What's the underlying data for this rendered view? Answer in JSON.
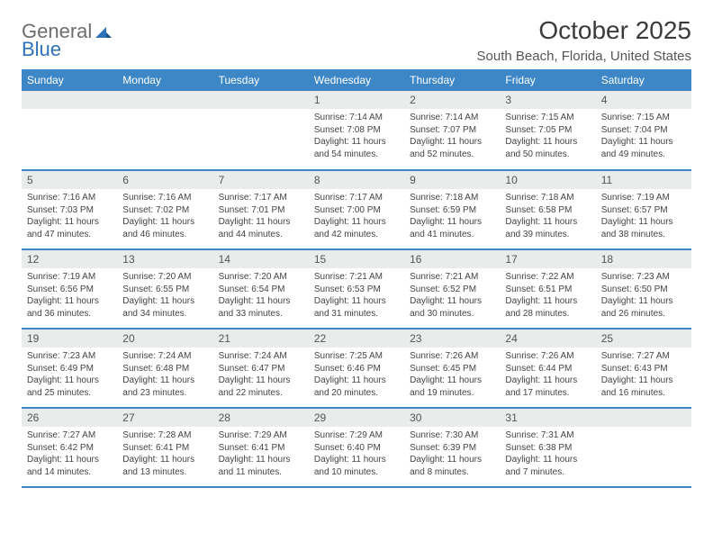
{
  "brand": {
    "part1": "General",
    "part2": "Blue"
  },
  "title": "October 2025",
  "location": "South Beach, Florida, United States",
  "colors": {
    "header_bg": "#3d87c7",
    "header_text": "#ffffff",
    "daynum_bg": "#e9eceb",
    "rule": "#3d87c7",
    "logo_gray": "#6d6d6d",
    "logo_blue": "#2f72b8"
  },
  "weekdays": [
    "Sunday",
    "Monday",
    "Tuesday",
    "Wednesday",
    "Thursday",
    "Friday",
    "Saturday"
  ],
  "weeks": [
    [
      null,
      null,
      null,
      {
        "n": "1",
        "sr": "Sunrise: 7:14 AM",
        "ss": "Sunset: 7:08 PM",
        "d1": "Daylight: 11 hours",
        "d2": "and 54 minutes."
      },
      {
        "n": "2",
        "sr": "Sunrise: 7:14 AM",
        "ss": "Sunset: 7:07 PM",
        "d1": "Daylight: 11 hours",
        "d2": "and 52 minutes."
      },
      {
        "n": "3",
        "sr": "Sunrise: 7:15 AM",
        "ss": "Sunset: 7:05 PM",
        "d1": "Daylight: 11 hours",
        "d2": "and 50 minutes."
      },
      {
        "n": "4",
        "sr": "Sunrise: 7:15 AM",
        "ss": "Sunset: 7:04 PM",
        "d1": "Daylight: 11 hours",
        "d2": "and 49 minutes."
      }
    ],
    [
      {
        "n": "5",
        "sr": "Sunrise: 7:16 AM",
        "ss": "Sunset: 7:03 PM",
        "d1": "Daylight: 11 hours",
        "d2": "and 47 minutes."
      },
      {
        "n": "6",
        "sr": "Sunrise: 7:16 AM",
        "ss": "Sunset: 7:02 PM",
        "d1": "Daylight: 11 hours",
        "d2": "and 46 minutes."
      },
      {
        "n": "7",
        "sr": "Sunrise: 7:17 AM",
        "ss": "Sunset: 7:01 PM",
        "d1": "Daylight: 11 hours",
        "d2": "and 44 minutes."
      },
      {
        "n": "8",
        "sr": "Sunrise: 7:17 AM",
        "ss": "Sunset: 7:00 PM",
        "d1": "Daylight: 11 hours",
        "d2": "and 42 minutes."
      },
      {
        "n": "9",
        "sr": "Sunrise: 7:18 AM",
        "ss": "Sunset: 6:59 PM",
        "d1": "Daylight: 11 hours",
        "d2": "and 41 minutes."
      },
      {
        "n": "10",
        "sr": "Sunrise: 7:18 AM",
        "ss": "Sunset: 6:58 PM",
        "d1": "Daylight: 11 hours",
        "d2": "and 39 minutes."
      },
      {
        "n": "11",
        "sr": "Sunrise: 7:19 AM",
        "ss": "Sunset: 6:57 PM",
        "d1": "Daylight: 11 hours",
        "d2": "and 38 minutes."
      }
    ],
    [
      {
        "n": "12",
        "sr": "Sunrise: 7:19 AM",
        "ss": "Sunset: 6:56 PM",
        "d1": "Daylight: 11 hours",
        "d2": "and 36 minutes."
      },
      {
        "n": "13",
        "sr": "Sunrise: 7:20 AM",
        "ss": "Sunset: 6:55 PM",
        "d1": "Daylight: 11 hours",
        "d2": "and 34 minutes."
      },
      {
        "n": "14",
        "sr": "Sunrise: 7:20 AM",
        "ss": "Sunset: 6:54 PM",
        "d1": "Daylight: 11 hours",
        "d2": "and 33 minutes."
      },
      {
        "n": "15",
        "sr": "Sunrise: 7:21 AM",
        "ss": "Sunset: 6:53 PM",
        "d1": "Daylight: 11 hours",
        "d2": "and 31 minutes."
      },
      {
        "n": "16",
        "sr": "Sunrise: 7:21 AM",
        "ss": "Sunset: 6:52 PM",
        "d1": "Daylight: 11 hours",
        "d2": "and 30 minutes."
      },
      {
        "n": "17",
        "sr": "Sunrise: 7:22 AM",
        "ss": "Sunset: 6:51 PM",
        "d1": "Daylight: 11 hours",
        "d2": "and 28 minutes."
      },
      {
        "n": "18",
        "sr": "Sunrise: 7:23 AM",
        "ss": "Sunset: 6:50 PM",
        "d1": "Daylight: 11 hours",
        "d2": "and 26 minutes."
      }
    ],
    [
      {
        "n": "19",
        "sr": "Sunrise: 7:23 AM",
        "ss": "Sunset: 6:49 PM",
        "d1": "Daylight: 11 hours",
        "d2": "and 25 minutes."
      },
      {
        "n": "20",
        "sr": "Sunrise: 7:24 AM",
        "ss": "Sunset: 6:48 PM",
        "d1": "Daylight: 11 hours",
        "d2": "and 23 minutes."
      },
      {
        "n": "21",
        "sr": "Sunrise: 7:24 AM",
        "ss": "Sunset: 6:47 PM",
        "d1": "Daylight: 11 hours",
        "d2": "and 22 minutes."
      },
      {
        "n": "22",
        "sr": "Sunrise: 7:25 AM",
        "ss": "Sunset: 6:46 PM",
        "d1": "Daylight: 11 hours",
        "d2": "and 20 minutes."
      },
      {
        "n": "23",
        "sr": "Sunrise: 7:26 AM",
        "ss": "Sunset: 6:45 PM",
        "d1": "Daylight: 11 hours",
        "d2": "and 19 minutes."
      },
      {
        "n": "24",
        "sr": "Sunrise: 7:26 AM",
        "ss": "Sunset: 6:44 PM",
        "d1": "Daylight: 11 hours",
        "d2": "and 17 minutes."
      },
      {
        "n": "25",
        "sr": "Sunrise: 7:27 AM",
        "ss": "Sunset: 6:43 PM",
        "d1": "Daylight: 11 hours",
        "d2": "and 16 minutes."
      }
    ],
    [
      {
        "n": "26",
        "sr": "Sunrise: 7:27 AM",
        "ss": "Sunset: 6:42 PM",
        "d1": "Daylight: 11 hours",
        "d2": "and 14 minutes."
      },
      {
        "n": "27",
        "sr": "Sunrise: 7:28 AM",
        "ss": "Sunset: 6:41 PM",
        "d1": "Daylight: 11 hours",
        "d2": "and 13 minutes."
      },
      {
        "n": "28",
        "sr": "Sunrise: 7:29 AM",
        "ss": "Sunset: 6:41 PM",
        "d1": "Daylight: 11 hours",
        "d2": "and 11 minutes."
      },
      {
        "n": "29",
        "sr": "Sunrise: 7:29 AM",
        "ss": "Sunset: 6:40 PM",
        "d1": "Daylight: 11 hours",
        "d2": "and 10 minutes."
      },
      {
        "n": "30",
        "sr": "Sunrise: 7:30 AM",
        "ss": "Sunset: 6:39 PM",
        "d1": "Daylight: 11 hours",
        "d2": "and 8 minutes."
      },
      {
        "n": "31",
        "sr": "Sunrise: 7:31 AM",
        "ss": "Sunset: 6:38 PM",
        "d1": "Daylight: 11 hours",
        "d2": "and 7 minutes."
      },
      null
    ]
  ]
}
